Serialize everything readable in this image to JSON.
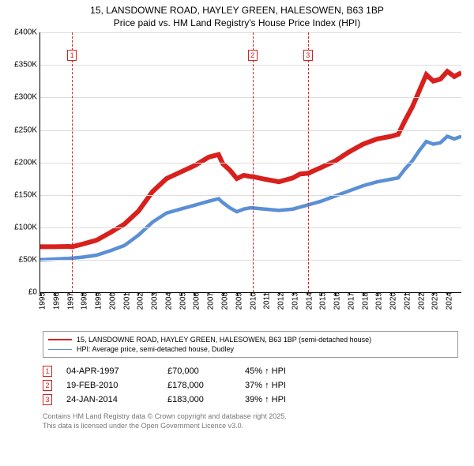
{
  "title_line1": "15, LANSDOWNE ROAD, HAYLEY GREEN, HALESOWEN, B63 1BP",
  "title_line2": "Price paid vs. HM Land Registry's House Price Index (HPI)",
  "series": {
    "property": {
      "label": "15, LANSDOWNE ROAD, HAYLEY GREEN, HALESOWEN, B63 1BP (semi-detached house)",
      "color": "#d8201d",
      "line_width": 2
    },
    "hpi": {
      "label": "HPI: Average price, semi-detached house, Dudley",
      "color": "#5b8fd6",
      "line_width": 1.5
    }
  },
  "y_axis": {
    "min": 0,
    "max": 400000,
    "ticks": [
      0,
      50000,
      100000,
      150000,
      200000,
      250000,
      300000,
      350000,
      400000
    ],
    "tick_labels": [
      "£0",
      "£50K",
      "£100K",
      "£150K",
      "£200K",
      "£250K",
      "£300K",
      "£350K",
      "£400K"
    ],
    "grid_color": "#dddddd",
    "label_fontsize": 10
  },
  "x_axis": {
    "min": 1995,
    "max": 2025,
    "ticks": [
      1995,
      1996,
      1997,
      1998,
      1999,
      2000,
      2001,
      2002,
      2003,
      2004,
      2005,
      2006,
      2007,
      2008,
      2009,
      2010,
      2011,
      2012,
      2013,
      2014,
      2015,
      2016,
      2017,
      2018,
      2019,
      2020,
      2021,
      2022,
      2023,
      2024
    ],
    "label_fontsize": 10
  },
  "property_data": [
    [
      1995,
      70000
    ],
    [
      1996,
      70000
    ],
    [
      1997,
      70500
    ],
    [
      1997.26,
      70000
    ],
    [
      1998,
      74000
    ],
    [
      1999,
      80000
    ],
    [
      2000,
      92000
    ],
    [
      2001,
      105000
    ],
    [
      2002,
      125000
    ],
    [
      2003,
      155000
    ],
    [
      2004,
      175000
    ],
    [
      2005,
      185000
    ],
    [
      2006,
      195000
    ],
    [
      2007,
      208000
    ],
    [
      2007.7,
      212000
    ],
    [
      2008,
      198000
    ],
    [
      2008.5,
      188000
    ],
    [
      2009,
      175000
    ],
    [
      2009.5,
      180000
    ],
    [
      2010,
      178000
    ],
    [
      2010.13,
      178000
    ],
    [
      2011,
      174000
    ],
    [
      2012,
      170000
    ],
    [
      2013,
      176000
    ],
    [
      2013.5,
      182000
    ],
    [
      2014,
      183000
    ],
    [
      2014.07,
      183000
    ],
    [
      2015,
      192000
    ],
    [
      2016,
      202000
    ],
    [
      2017,
      216000
    ],
    [
      2018,
      228000
    ],
    [
      2019,
      236000
    ],
    [
      2020,
      240000
    ],
    [
      2020.5,
      243000
    ],
    [
      2021,
      265000
    ],
    [
      2021.5,
      285000
    ],
    [
      2022,
      310000
    ],
    [
      2022.5,
      335000
    ],
    [
      2023,
      325000
    ],
    [
      2023.5,
      328000
    ],
    [
      2024,
      340000
    ],
    [
      2024.5,
      332000
    ],
    [
      2025,
      338000
    ]
  ],
  "hpi_data": [
    [
      1995,
      50000
    ],
    [
      1996,
      51000
    ],
    [
      1997,
      52000
    ],
    [
      1998,
      54000
    ],
    [
      1999,
      57000
    ],
    [
      2000,
      64000
    ],
    [
      2001,
      72000
    ],
    [
      2002,
      88000
    ],
    [
      2003,
      108000
    ],
    [
      2004,
      122000
    ],
    [
      2005,
      128000
    ],
    [
      2006,
      134000
    ],
    [
      2007,
      140000
    ],
    [
      2007.7,
      144000
    ],
    [
      2008,
      138000
    ],
    [
      2008.5,
      130000
    ],
    [
      2009,
      124000
    ],
    [
      2009.5,
      128000
    ],
    [
      2010,
      130000
    ],
    [
      2011,
      128000
    ],
    [
      2012,
      126000
    ],
    [
      2013,
      128000
    ],
    [
      2013.5,
      131000
    ],
    [
      2014,
      134000
    ],
    [
      2015,
      140000
    ],
    [
      2016,
      148000
    ],
    [
      2017,
      156000
    ],
    [
      2018,
      164000
    ],
    [
      2019,
      170000
    ],
    [
      2020,
      174000
    ],
    [
      2020.5,
      176000
    ],
    [
      2021,
      190000
    ],
    [
      2021.5,
      202000
    ],
    [
      2022,
      218000
    ],
    [
      2022.5,
      232000
    ],
    [
      2023,
      228000
    ],
    [
      2023.5,
      230000
    ],
    [
      2024,
      240000
    ],
    [
      2024.5,
      236000
    ],
    [
      2025,
      240000
    ]
  ],
  "sales": [
    {
      "n": "1",
      "date": "04-APR-1997",
      "price": "£70,000",
      "hpi": "45% ↑ HPI",
      "year": 1997.26,
      "color": "#d8201d"
    },
    {
      "n": "2",
      "date": "19-FEB-2010",
      "price": "£178,000",
      "hpi": "37% ↑ HPI",
      "year": 2010.13,
      "color": "#d8201d"
    },
    {
      "n": "3",
      "date": "24-JAN-2014",
      "price": "£183,000",
      "hpi": "39% ↑ HPI",
      "year": 2014.07,
      "color": "#d8201d"
    }
  ],
  "footer_line1": "Contains HM Land Registry data © Crown copyright and database right 2025.",
  "footer_line2": "This data is licensed under the Open Government Licence v3.0.",
  "background_color": "#ffffff"
}
